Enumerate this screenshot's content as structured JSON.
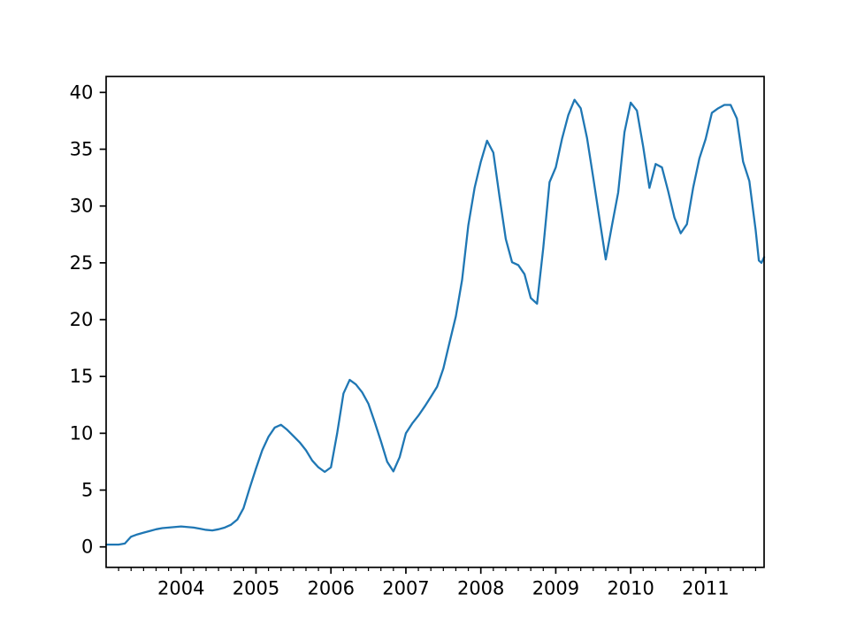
{
  "figure": {
    "background": "#ffffff"
  },
  "chart_data": {
    "type": "line",
    "title": "",
    "subtitle": "",
    "xlabel": "",
    "ylabel": "",
    "grid": false,
    "legend": null,
    "axis_color": "#000000",
    "tick_label_color": "#000000",
    "line_color": "#1f77b4",
    "xlim": [
      2003.0,
      2011.78
    ],
    "ylim": [
      -1.8,
      41.4
    ],
    "x_major_ticks": [
      2004,
      2005,
      2006,
      2007,
      2008,
      2009,
      2010,
      2011
    ],
    "x_major_tick_labels": [
      "2004",
      "2005",
      "2006",
      "2007",
      "2008",
      "2009",
      "2010",
      "2011"
    ],
    "x_minor_tick_months": [
      3,
      5,
      7,
      9,
      11
    ],
    "x_minor_tick_years": [
      2003,
      2004,
      2005,
      2006,
      2007,
      2008,
      2009,
      2010,
      2011
    ],
    "y_major_ticks": [
      0,
      5,
      10,
      15,
      20,
      25,
      30,
      35,
      40
    ],
    "y_major_tick_labels": [
      "0",
      "5",
      "10",
      "15",
      "20",
      "25",
      "30",
      "35",
      "40"
    ],
    "series": [
      {
        "name": "series-1",
        "points": [
          [
            2003.0,
            0.2
          ],
          [
            2003.083,
            0.2
          ],
          [
            2003.167,
            0.2
          ],
          [
            2003.25,
            0.3
          ],
          [
            2003.333,
            0.9
          ],
          [
            2003.417,
            1.1
          ],
          [
            2003.5,
            1.25
          ],
          [
            2003.583,
            1.4
          ],
          [
            2003.667,
            1.55
          ],
          [
            2003.75,
            1.65
          ],
          [
            2003.833,
            1.7
          ],
          [
            2003.917,
            1.75
          ],
          [
            2004.0,
            1.8
          ],
          [
            2004.083,
            1.75
          ],
          [
            2004.167,
            1.7
          ],
          [
            2004.25,
            1.6
          ],
          [
            2004.333,
            1.5
          ],
          [
            2004.417,
            1.45
          ],
          [
            2004.5,
            1.55
          ],
          [
            2004.583,
            1.7
          ],
          [
            2004.667,
            1.95
          ],
          [
            2004.75,
            2.4
          ],
          [
            2004.833,
            3.4
          ],
          [
            2004.917,
            5.2
          ],
          [
            2005.0,
            6.9
          ],
          [
            2005.083,
            8.5
          ],
          [
            2005.167,
            9.7
          ],
          [
            2005.25,
            10.5
          ],
          [
            2005.333,
            10.75
          ],
          [
            2005.417,
            10.3
          ],
          [
            2005.5,
            9.75
          ],
          [
            2005.583,
            9.2
          ],
          [
            2005.667,
            8.5
          ],
          [
            2005.75,
            7.6
          ],
          [
            2005.833,
            7.0
          ],
          [
            2005.917,
            6.6
          ],
          [
            2006.0,
            7.0
          ],
          [
            2006.083,
            10.0
          ],
          [
            2006.167,
            13.5
          ],
          [
            2006.25,
            14.7
          ],
          [
            2006.333,
            14.3
          ],
          [
            2006.417,
            13.6
          ],
          [
            2006.5,
            12.6
          ],
          [
            2006.583,
            11.0
          ],
          [
            2006.667,
            9.3
          ],
          [
            2006.75,
            7.5
          ],
          [
            2006.833,
            6.65
          ],
          [
            2006.917,
            7.9
          ],
          [
            2007.0,
            10.0
          ],
          [
            2007.083,
            10.85
          ],
          [
            2007.167,
            11.55
          ],
          [
            2007.25,
            12.35
          ],
          [
            2007.333,
            13.2
          ],
          [
            2007.417,
            14.1
          ],
          [
            2007.5,
            15.7
          ],
          [
            2007.583,
            18.0
          ],
          [
            2007.667,
            20.3
          ],
          [
            2007.75,
            23.5
          ],
          [
            2007.833,
            28.3
          ],
          [
            2007.917,
            31.6
          ],
          [
            2008.0,
            33.9
          ],
          [
            2008.083,
            35.75
          ],
          [
            2008.167,
            34.7
          ],
          [
            2008.25,
            30.8
          ],
          [
            2008.333,
            27.1
          ],
          [
            2008.417,
            25.05
          ],
          [
            2008.5,
            24.8
          ],
          [
            2008.583,
            24.0
          ],
          [
            2008.667,
            21.9
          ],
          [
            2008.75,
            21.4
          ],
          [
            2008.833,
            26.3
          ],
          [
            2008.917,
            32.1
          ],
          [
            2009.0,
            33.4
          ],
          [
            2009.083,
            35.9
          ],
          [
            2009.167,
            38.0
          ],
          [
            2009.25,
            39.35
          ],
          [
            2009.333,
            38.6
          ],
          [
            2009.417,
            36.0
          ],
          [
            2009.5,
            32.5
          ],
          [
            2009.583,
            28.9
          ],
          [
            2009.667,
            25.3
          ],
          [
            2009.75,
            28.3
          ],
          [
            2009.833,
            31.2
          ],
          [
            2009.917,
            36.5
          ],
          [
            2010.0,
            39.1
          ],
          [
            2010.083,
            38.4
          ],
          [
            2010.167,
            35.2
          ],
          [
            2010.25,
            31.6
          ],
          [
            2010.333,
            33.7
          ],
          [
            2010.417,
            33.4
          ],
          [
            2010.5,
            31.3
          ],
          [
            2010.583,
            29.0
          ],
          [
            2010.667,
            27.6
          ],
          [
            2010.75,
            28.4
          ],
          [
            2010.833,
            31.6
          ],
          [
            2010.917,
            34.2
          ],
          [
            2011.0,
            35.9
          ],
          [
            2011.083,
            38.2
          ],
          [
            2011.167,
            38.6
          ],
          [
            2011.25,
            38.9
          ],
          [
            2011.333,
            38.9
          ],
          [
            2011.417,
            37.7
          ],
          [
            2011.5,
            33.9
          ],
          [
            2011.583,
            32.2
          ],
          [
            2011.667,
            27.9
          ],
          [
            2011.71,
            25.2
          ],
          [
            2011.745,
            25.0
          ],
          [
            2011.78,
            25.5
          ]
        ]
      }
    ]
  }
}
